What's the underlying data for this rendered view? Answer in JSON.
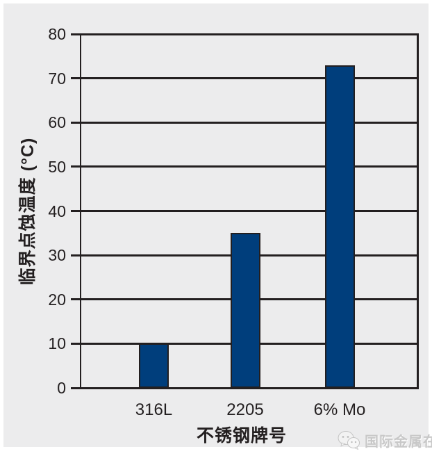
{
  "chart_data": {
    "type": "bar",
    "title": "",
    "categories": [
      "316L",
      "2205",
      "6% Mo"
    ],
    "values": [
      10,
      35,
      73
    ],
    "xlabel": "不锈钢牌号",
    "ylabel": "临界点蚀温度 (°C)",
    "ylim": [
      0,
      80
    ],
    "yticks": [
      0,
      10,
      20,
      30,
      40,
      50,
      60,
      70,
      80
    ],
    "grid": "horizontal gridlines at every y tick, dark",
    "legend": "none",
    "colors": {
      "bar_fill": "#003e7c",
      "bar_border": "#231f20",
      "line": "#231f20",
      "text": "#231f20",
      "panel_bg": "#ececed",
      "watermark": "#c8c8c8"
    }
  },
  "watermark": {
    "icon": "wechat-icon",
    "text": "国际金属在线"
  }
}
